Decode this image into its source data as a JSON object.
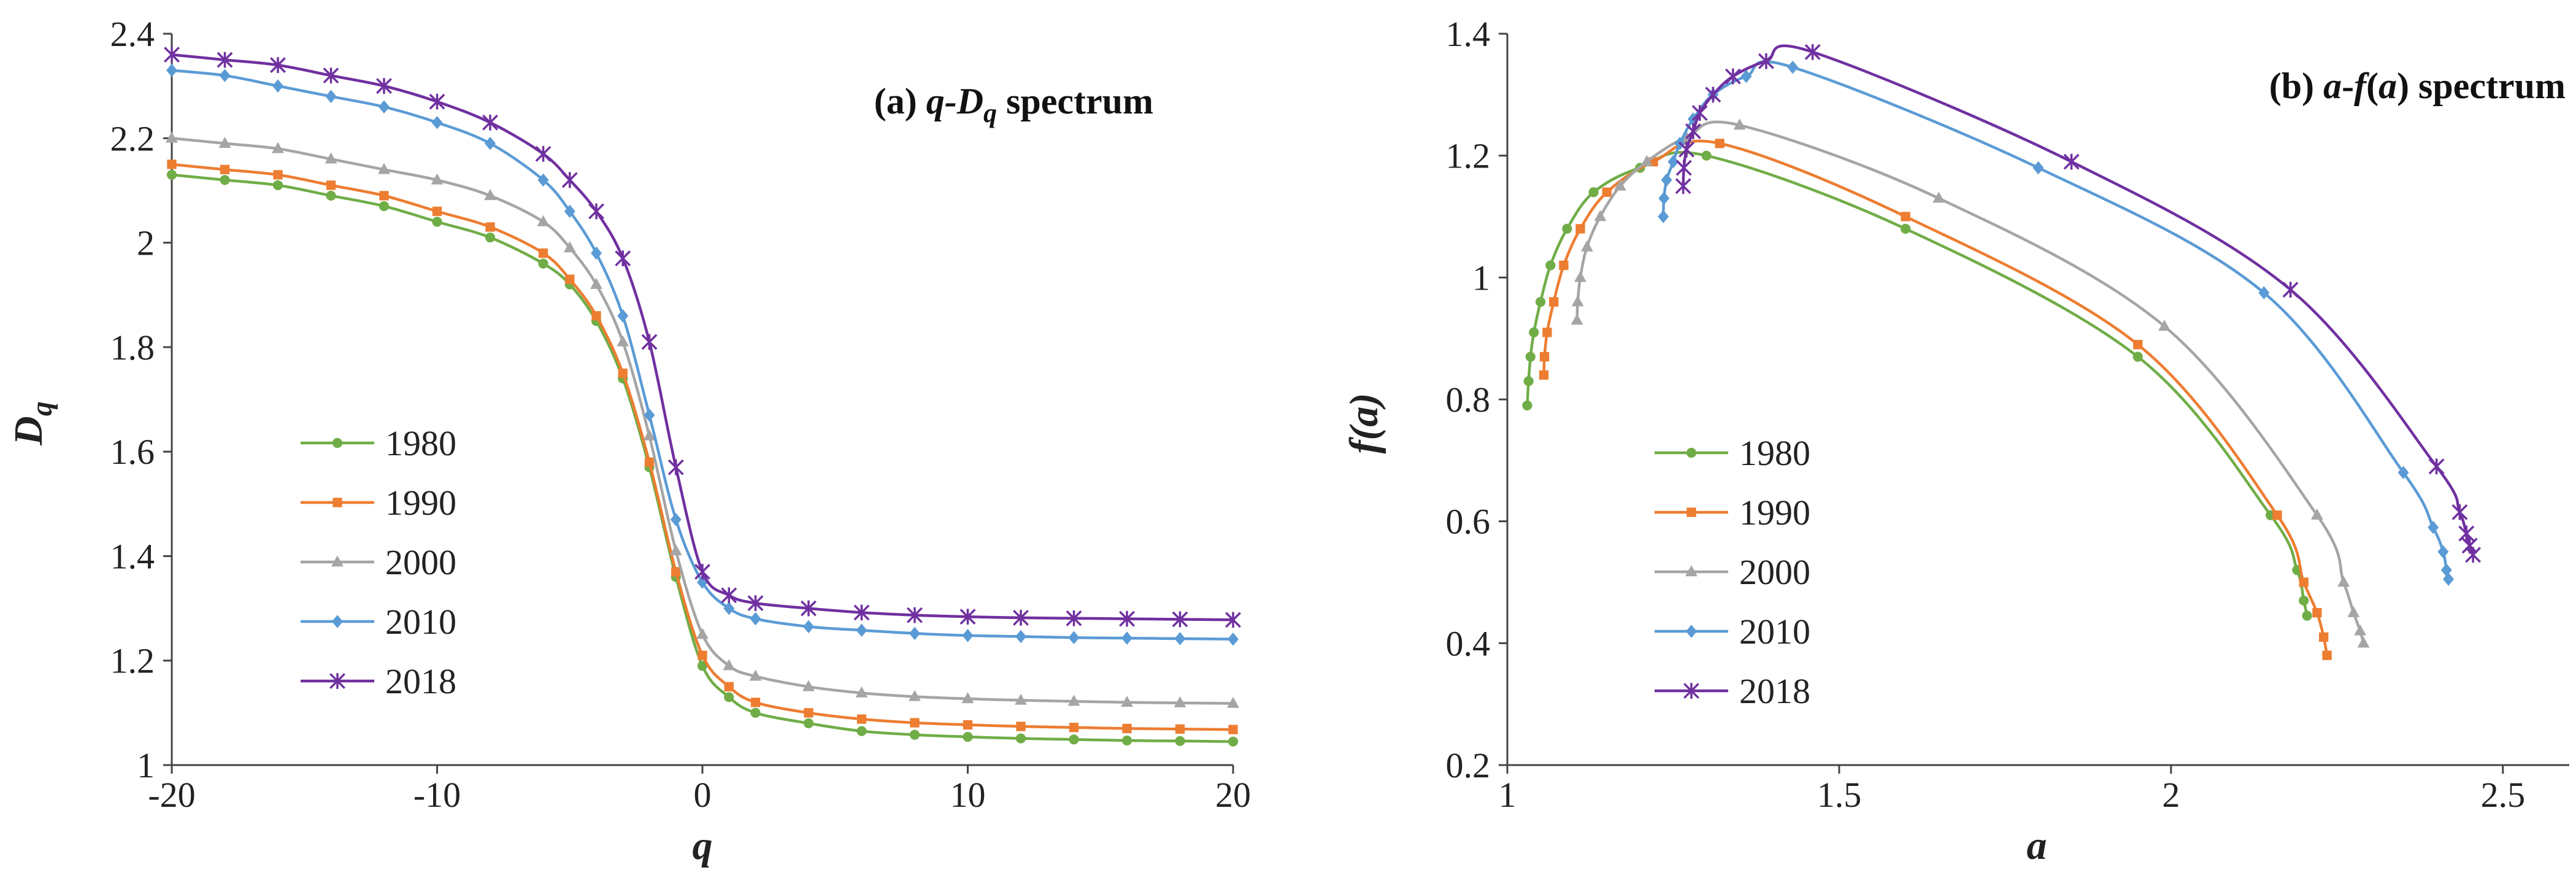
{
  "colors": {
    "1980": "#70AD47",
    "1990": "#ED7D31",
    "2000": "#A5A5A5",
    "2010": "#5B9BD5",
    "2018": "#7030A0"
  },
  "chart_data": [
    {
      "type": "line",
      "title_parts": [
        "(a) ",
        "q",
        "-D",
        "q",
        " spectrum"
      ],
      "xlabel": "q",
      "ylabel": "D",
      "ylabel_sub": "q",
      "xlim": [
        -20,
        20
      ],
      "ylim": [
        1,
        2.4
      ],
      "xticks": [
        -20,
        -10,
        0,
        10,
        20
      ],
      "yticks": [
        1,
        1.2,
        1.4,
        1.6,
        1.8,
        2,
        2.2,
        2.4
      ],
      "ytick_labels": [
        "1",
        "1.2",
        "1.4",
        "1.6",
        "1.8",
        "2",
        "2.2",
        "2.4"
      ],
      "xtick_labels": [
        "-20",
        "-10",
        "0",
        "10",
        "20"
      ],
      "legend": [
        "1980",
        "1990",
        "2000",
        "2010",
        "2018"
      ],
      "series": [
        {
          "name": "1980",
          "marker": "circle",
          "x": [
            -20,
            -18,
            -16,
            -14,
            -12,
            -10,
            -8,
            -6,
            -5,
            -4,
            -3,
            -2,
            -1,
            0,
            1,
            2,
            4,
            6,
            8,
            10,
            12,
            14,
            16,
            18,
            20
          ],
          "y": [
            2.13,
            2.12,
            2.11,
            2.09,
            2.07,
            2.04,
            2.01,
            1.96,
            1.92,
            1.85,
            1.74,
            1.57,
            1.36,
            1.19,
            1.13,
            1.1,
            1.08,
            1.065,
            1.058,
            1.054,
            1.051,
            1.049,
            1.047,
            1.046,
            1.045
          ]
        },
        {
          "name": "1990",
          "marker": "square",
          "x": [
            -20,
            -18,
            -16,
            -14,
            -12,
            -10,
            -8,
            -6,
            -5,
            -4,
            -3,
            -2,
            -1,
            0,
            1,
            2,
            4,
            6,
            8,
            10,
            12,
            14,
            16,
            18,
            20
          ],
          "y": [
            2.15,
            2.14,
            2.13,
            2.11,
            2.09,
            2.06,
            2.03,
            1.98,
            1.93,
            1.86,
            1.75,
            1.58,
            1.37,
            1.21,
            1.15,
            1.12,
            1.1,
            1.088,
            1.081,
            1.077,
            1.074,
            1.072,
            1.07,
            1.069,
            1.068
          ]
        },
        {
          "name": "2000",
          "marker": "triangle",
          "x": [
            -20,
            -18,
            -16,
            -14,
            -12,
            -10,
            -8,
            -6,
            -5,
            -4,
            -3,
            -2,
            -1,
            0,
            1,
            2,
            4,
            6,
            8,
            10,
            12,
            14,
            16,
            18,
            20
          ],
          "y": [
            2.2,
            2.19,
            2.18,
            2.16,
            2.14,
            2.12,
            2.09,
            2.04,
            1.99,
            1.92,
            1.81,
            1.63,
            1.41,
            1.25,
            1.19,
            1.17,
            1.15,
            1.138,
            1.131,
            1.127,
            1.124,
            1.122,
            1.12,
            1.119,
            1.118
          ]
        },
        {
          "name": "2010",
          "marker": "diamond",
          "x": [
            -20,
            -18,
            -16,
            -14,
            -12,
            -10,
            -8,
            -6,
            -5,
            -4,
            -3,
            -2,
            -1,
            0,
            1,
            2,
            4,
            6,
            8,
            10,
            12,
            14,
            16,
            18,
            20
          ],
          "y": [
            2.33,
            2.32,
            2.3,
            2.28,
            2.26,
            2.23,
            2.19,
            2.12,
            2.06,
            1.98,
            1.86,
            1.67,
            1.47,
            1.35,
            1.3,
            1.28,
            1.265,
            1.258,
            1.252,
            1.248,
            1.246,
            1.244,
            1.243,
            1.242,
            1.241
          ]
        },
        {
          "name": "2018",
          "marker": "star",
          "x": [
            -20,
            -18,
            -16,
            -14,
            -12,
            -10,
            -8,
            -6,
            -5,
            -4,
            -3,
            -2,
            -1,
            0,
            1,
            2,
            4,
            6,
            8,
            10,
            12,
            14,
            16,
            18,
            20
          ],
          "y": [
            2.36,
            2.35,
            2.34,
            2.32,
            2.3,
            2.27,
            2.23,
            2.17,
            2.12,
            2.06,
            1.97,
            1.81,
            1.57,
            1.37,
            1.325,
            1.31,
            1.3,
            1.292,
            1.287,
            1.284,
            1.282,
            1.281,
            1.28,
            1.279,
            1.278
          ]
        }
      ]
    },
    {
      "type": "line",
      "title_parts": [
        "(b) ",
        "a",
        "-",
        "f",
        "(",
        "a",
        ") spectrum"
      ],
      "xlabel": "a",
      "ylabel": "f(a)",
      "xlim": [
        1,
        2.6
      ],
      "ylim": [
        0.2,
        1.4
      ],
      "xticks": [
        1,
        1.5,
        2,
        2.5
      ],
      "xtick_labels": [
        "1",
        "1.5",
        "2",
        "2.5"
      ],
      "yticks": [
        0.2,
        0.4,
        0.6,
        0.8,
        1,
        1.2,
        1.4
      ],
      "ytick_labels": [
        "0.2",
        "0.4",
        "0.6",
        "0.8",
        "1",
        "1.2",
        "1.4"
      ],
      "legend": [
        "1980",
        "1990",
        "2000",
        "2010",
        "2018"
      ],
      "series": [
        {
          "name": "1980",
          "marker": "circle",
          "x": [
            1.03,
            1.032,
            1.035,
            1.04,
            1.05,
            1.065,
            1.09,
            1.13,
            1.2,
            1.3,
            1.6,
            1.95,
            2.15,
            2.19,
            2.2,
            2.205
          ],
          "y": [
            0.79,
            0.83,
            0.87,
            0.91,
            0.96,
            1.02,
            1.08,
            1.14,
            1.18,
            1.2,
            1.08,
            0.87,
            0.61,
            0.52,
            0.47,
            0.445
          ]
        },
        {
          "name": "1990",
          "marker": "square",
          "x": [
            1.055,
            1.056,
            1.06,
            1.07,
            1.085,
            1.11,
            1.15,
            1.22,
            1.32,
            1.6,
            1.95,
            2.16,
            2.2,
            2.22,
            2.23,
            2.235
          ],
          "y": [
            0.84,
            0.87,
            0.91,
            0.96,
            1.02,
            1.08,
            1.14,
            1.19,
            1.22,
            1.1,
            0.89,
            0.61,
            0.5,
            0.45,
            0.41,
            0.38
          ]
        },
        {
          "name": "2000",
          "marker": "triangle",
          "x": [
            1.105,
            1.106,
            1.11,
            1.12,
            1.14,
            1.17,
            1.21,
            1.27,
            1.35,
            1.65,
            1.99,
            2.22,
            2.26,
            2.275,
            2.285,
            2.29
          ],
          "y": [
            0.93,
            0.96,
            1.0,
            1.05,
            1.1,
            1.15,
            1.19,
            1.23,
            1.25,
            1.13,
            0.92,
            0.61,
            0.5,
            0.45,
            0.42,
            0.4
          ]
        },
        {
          "name": "2010",
          "marker": "diamond",
          "x": [
            1.235,
            1.236,
            1.24,
            1.25,
            1.26,
            1.28,
            1.31,
            1.36,
            1.43,
            1.8,
            2.14,
            2.35,
            2.395,
            2.41,
            2.415,
            2.418
          ],
          "y": [
            1.1,
            1.13,
            1.16,
            1.19,
            1.22,
            1.26,
            1.3,
            1.33,
            1.345,
            1.18,
            0.975,
            0.68,
            0.59,
            0.55,
            0.52,
            0.505
          ]
        },
        {
          "name": "2018",
          "marker": "star",
          "x": [
            1.265,
            1.266,
            1.27,
            1.28,
            1.29,
            1.31,
            1.34,
            1.39,
            1.46,
            1.85,
            2.18,
            2.4,
            2.435,
            2.445,
            2.45,
            2.455
          ],
          "y": [
            1.15,
            1.18,
            1.21,
            1.24,
            1.27,
            1.3,
            1.33,
            1.355,
            1.37,
            1.19,
            0.98,
            0.69,
            0.615,
            0.58,
            0.56,
            0.545
          ]
        }
      ]
    }
  ]
}
